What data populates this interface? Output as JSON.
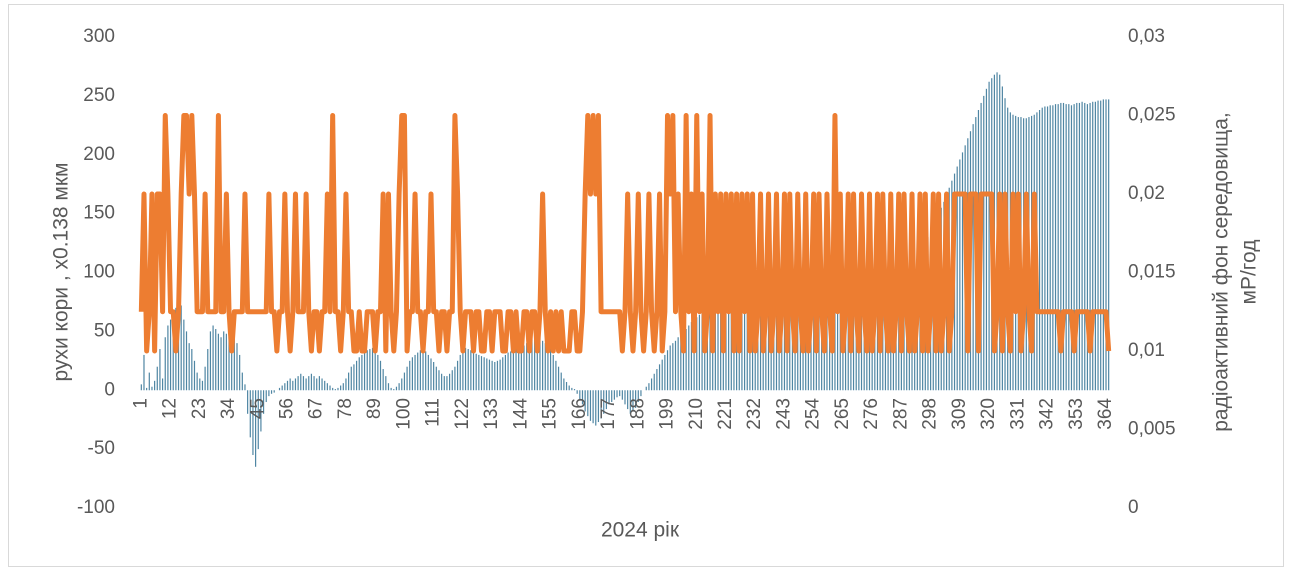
{
  "chart_data": {
    "type": "combo",
    "x_label": "2024 рік",
    "y_label": "рухи кори , х0.138 мкм",
    "y2_label": [
      "радіоактивний фон середовища,",
      "мР/год"
    ],
    "ylim": [
      -100,
      300
    ],
    "yticks": [
      300,
      250,
      200,
      150,
      100,
      50,
      0,
      -50,
      -100
    ],
    "y2lim": [
      0,
      0.03
    ],
    "y2ticks": [
      {
        "value": 0.03,
        "label": "0,03"
      },
      {
        "value": 0.025,
        "label": "0,025"
      },
      {
        "value": 0.02,
        "label": "0,02"
      },
      {
        "value": 0.015,
        "label": "0,015"
      },
      {
        "value": 0.01,
        "label": "0,01"
      },
      {
        "value": 0.005,
        "label": "0,005"
      },
      0
    ],
    "categories": [
      "1",
      null,
      null,
      null,
      null,
      null,
      null,
      null,
      null,
      null,
      null,
      "12",
      null,
      null,
      null,
      null,
      null,
      null,
      null,
      null,
      null,
      null,
      "23",
      null,
      null,
      null,
      null,
      null,
      null,
      null,
      null,
      null,
      null,
      "34",
      null,
      null,
      null,
      null,
      null,
      null,
      null,
      null,
      null,
      null,
      "45",
      null,
      null,
      null,
      null,
      null,
      null,
      null,
      null,
      null,
      null,
      "56",
      null,
      null,
      null,
      null,
      null,
      null,
      null,
      null,
      null,
      null,
      "67",
      null,
      null,
      null,
      null,
      null,
      null,
      null,
      null,
      null,
      null,
      "78",
      null,
      null,
      null,
      null,
      null,
      null,
      null,
      null,
      null,
      null,
      "89",
      null,
      null,
      null,
      null,
      null,
      null,
      null,
      null,
      null,
      null,
      "100",
      null,
      null,
      null,
      null,
      null,
      null,
      null,
      null,
      null,
      null,
      "111",
      null,
      null,
      null,
      null,
      null,
      null,
      null,
      null,
      null,
      null,
      "122",
      null,
      null,
      null,
      null,
      null,
      null,
      null,
      null,
      null,
      null,
      "133",
      null,
      null,
      null,
      null,
      null,
      null,
      null,
      null,
      null,
      null,
      "144",
      null,
      null,
      null,
      null,
      null,
      null,
      null,
      null,
      null,
      null,
      "155",
      null,
      null,
      null,
      null,
      null,
      null,
      null,
      null,
      null,
      null,
      "166",
      null,
      null,
      null,
      null,
      null,
      null,
      null,
      null,
      null,
      null,
      "177",
      null,
      null,
      null,
      null,
      null,
      null,
      null,
      null,
      null,
      null,
      "188",
      null,
      null,
      null,
      null,
      null,
      null,
      null,
      null,
      null,
      null,
      "199",
      null,
      null,
      null,
      null,
      null,
      null,
      null,
      null,
      null,
      null,
      "210",
      null,
      null,
      null,
      null,
      null,
      null,
      null,
      null,
      null,
      null,
      "221",
      null,
      null,
      null,
      null,
      null,
      null,
      null,
      null,
      null,
      null,
      "232",
      null,
      null,
      null,
      null,
      null,
      null,
      null,
      null,
      null,
      null,
      "243",
      null,
      null,
      null,
      null,
      null,
      null,
      null,
      null,
      null,
      null,
      "254",
      null,
      null,
      null,
      null,
      null,
      null,
      null,
      null,
      null,
      null,
      "265",
      null,
      null,
      null,
      null,
      null,
      null,
      null,
      null,
      null,
      null,
      "276",
      null,
      null,
      null,
      null,
      null,
      null,
      null,
      null,
      null,
      null,
      "287",
      null,
      null,
      null,
      null,
      null,
      null,
      null,
      null,
      null,
      null,
      "298",
      null,
      null,
      null,
      null,
      null,
      null,
      null,
      null,
      null,
      null,
      "309",
      null,
      null,
      null,
      null,
      null,
      null,
      null,
      null,
      null,
      null,
      "320",
      null,
      null,
      null,
      null,
      null,
      null,
      null,
      null,
      null,
      null,
      "331",
      null,
      null,
      null,
      null,
      null,
      null,
      null,
      null,
      null,
      null,
      "342",
      null,
      null,
      null,
      null,
      null,
      null,
      null,
      null,
      null,
      null,
      "353",
      null,
      null,
      null,
      null,
      null,
      null,
      null,
      null,
      null,
      null,
      "364",
      null
    ],
    "series": [
      {
        "type": "bar",
        "color": "#4f86a3",
        "values": [
          5,
          30,
          2,
          15,
          3,
          8,
          20,
          35,
          10,
          45,
          55,
          60,
          65,
          70,
          75,
          72,
          60,
          50,
          40,
          35,
          25,
          15,
          10,
          8,
          20,
          35,
          50,
          55,
          52,
          48,
          45,
          50,
          48,
          45,
          46,
          44,
          40,
          30,
          15,
          5,
          -20,
          -40,
          -55,
          -65,
          -50,
          -35,
          -20,
          -10,
          -5,
          -3,
          -2,
          0,
          2,
          4,
          6,
          8,
          10,
          8,
          10,
          12,
          14,
          12,
          10,
          12,
          14,
          12,
          10,
          12,
          10,
          8,
          6,
          4,
          2,
          1,
          2,
          4,
          6,
          10,
          15,
          20,
          22,
          25,
          28,
          30,
          32,
          34,
          35,
          36,
          35,
          30,
          25,
          18,
          12,
          6,
          2,
          1,
          3,
          6,
          10,
          15,
          20,
          25,
          28,
          30,
          32,
          34,
          35,
          33,
          30,
          27,
          24,
          20,
          17,
          14,
          12,
          12,
          14,
          17,
          20,
          25,
          30,
          34,
          36,
          35,
          34,
          32,
          31,
          30,
          29,
          28,
          27,
          26,
          25,
          24,
          25,
          26,
          28,
          30,
          32,
          33,
          34,
          35,
          36,
          37,
          38,
          40,
          42,
          43,
          44,
          45,
          44,
          42,
          40,
          38,
          35,
          30,
          25,
          20,
          15,
          10,
          7,
          4,
          2,
          1,
          -3,
          -8,
          -12,
          -18,
          -22,
          -26,
          -28,
          -30,
          -27,
          -24,
          -20,
          -16,
          -12,
          -10,
          -8,
          -6,
          -5,
          -8,
          -12,
          -16,
          -20,
          -18,
          -15,
          -10,
          -5,
          0,
          3,
          6,
          10,
          14,
          18,
          22,
          26,
          30,
          34,
          38,
          40,
          42,
          45,
          48,
          50,
          52,
          55,
          58,
          60,
          62,
          64,
          66,
          68,
          70,
          72,
          74,
          76,
          78,
          80,
          82,
          84,
          86,
          88,
          90,
          92,
          94,
          96,
          98,
          100,
          102,
          104,
          106,
          108,
          110,
          110,
          112,
          112,
          114,
          114,
          115,
          115,
          114,
          113,
          112,
          112,
          111,
          110,
          110,
          112,
          113,
          114,
          114,
          113,
          112,
          110,
          108,
          106,
          104,
          102,
          100,
          98,
          96,
          95,
          94,
          93,
          92,
          91,
          90,
          89,
          88,
          87,
          86,
          85,
          85,
          86,
          87,
          88,
          90,
          92,
          94,
          95,
          96,
          98,
          100,
          102,
          104,
          106,
          108,
          110,
          112,
          114,
          116,
          118,
          120,
          122,
          125,
          130,
          135,
          140,
          145,
          150,
          155,
          160,
          166,
          172,
          178,
          184,
          190,
          196,
          202,
          208,
          214,
          220,
          226,
          232,
          238,
          244,
          250,
          256,
          262,
          265,
          268,
          270,
          268,
          258,
          248,
          240,
          236,
          234,
          233,
          232,
          232,
          231,
          231,
          232,
          233,
          234,
          236,
          238,
          240,
          241,
          241,
          242,
          242,
          243,
          243,
          244,
          244,
          243,
          243,
          242,
          243,
          244,
          244,
          245,
          244,
          243,
          244,
          245,
          245,
          246,
          246,
          247,
          247,
          247
        ]
      },
      {
        "type": "line",
        "axis": "y2",
        "color": "#ed7d31",
        "values": [
          0.0125,
          0.02,
          0.01,
          0.0125,
          0.02,
          0.01,
          0.02,
          0.02,
          0.0125,
          0.025,
          0.02,
          0.0125,
          0.0125,
          0.01,
          0.0125,
          0.02,
          0.025,
          0.025,
          0.02,
          0.025,
          0.02,
          0.0125,
          0.0125,
          0.0125,
          0.02,
          0.0125,
          0.0125,
          0.0125,
          0.0125,
          0.025,
          0.0125,
          0.0125,
          0.02,
          0.0125,
          0.01,
          0.0125,
          0.0125,
          0.0125,
          0.0125,
          0.02,
          0.0125,
          0.0125,
          0.0125,
          0.0125,
          0.0125,
          0.0125,
          0.0125,
          0.0125,
          0.02,
          0.0125,
          0.0125,
          0.01,
          0.0125,
          0.0125,
          0.02,
          0.0125,
          0.01,
          0.0125,
          0.02,
          0.0125,
          0.0125,
          0.0125,
          0.02,
          0.0125,
          0.01,
          0.0125,
          0.0125,
          0.01,
          0.0125,
          0.0125,
          0.02,
          0.0125,
          0.025,
          0.0125,
          0.0125,
          0.01,
          0.0125,
          0.02,
          0.0125,
          0.0125,
          0.01,
          0.01,
          0.0125,
          0.01,
          0.01,
          0.0125,
          0.0125,
          0.0125,
          0.01,
          0.0125,
          0.0125,
          0.02,
          0.01,
          0.02,
          0.0125,
          0.01,
          0.0125,
          0.02,
          0.025,
          0.025,
          0.01,
          0.0125,
          0.0125,
          0.02,
          0.0125,
          0.0125,
          0.01,
          0.0125,
          0.0125,
          0.02,
          0.0125,
          0.0125,
          0.01,
          0.0125,
          0.0125,
          0.01,
          0.0125,
          0.0125,
          0.025,
          0.02,
          0.0125,
          0.01,
          0.0125,
          0.0125,
          0.0125,
          0.01,
          0.0125,
          0.0125,
          0.01,
          0.01,
          0.0125,
          0.0125,
          0.01,
          0.0125,
          0.0125,
          0.0125,
          0.01,
          0.01,
          0.0125,
          0.0125,
          0.01,
          0.0125,
          0.01,
          0.01,
          0.0125,
          0.0125,
          0.01,
          0.0125,
          0.0125,
          0.01,
          0.0125,
          0.02,
          0.0125,
          0.01,
          0.0125,
          0.01,
          0.0125,
          0.01,
          0.0125,
          0.01,
          0.01,
          0.01,
          0.0125,
          0.0125,
          0.01,
          0.01,
          0.0125,
          0.02,
          0.025,
          0.02,
          0.025,
          0.02,
          0.025,
          0.0125,
          0.0125,
          0.0125,
          0.0125,
          0.0125,
          0.0125,
          0.0125,
          0.0125,
          0.01,
          0.0125,
          0.02,
          0.0125,
          0.01,
          0.0125,
          0.02,
          0.0125,
          0.01,
          0.0125,
          0.02,
          0.0125,
          0.01,
          0.0125,
          0.02,
          0.01,
          0.0125,
          0.025,
          0.02,
          0.025,
          0.0125,
          0.02,
          0.0125,
          0.01,
          0.025,
          0.0125,
          0.02,
          0.01,
          0.025,
          0.0125,
          0.02,
          0.01,
          0.0125,
          0.025,
          0.01,
          0.02,
          0.0125,
          0.02,
          0.01,
          0.02,
          0.0125,
          0.02,
          0.01,
          0.02,
          0.01,
          0.02,
          0.0125,
          0.02,
          0.01,
          0.02,
          0.01,
          0.0125,
          0.02,
          0.01,
          0.0125,
          0.02,
          0.01,
          0.0125,
          0.02,
          0.01,
          0.0125,
          0.02,
          0.01,
          0.02,
          0.0125,
          0.01,
          0.02,
          0.0125,
          0.01,
          0.02,
          0.01,
          0.0125,
          0.02,
          0.01,
          0.02,
          0.0125,
          0.01,
          0.02,
          0.0125,
          0.01,
          0.025,
          0.0125,
          0.02,
          0.01,
          0.0125,
          0.02,
          0.01,
          0.02,
          0.0125,
          0.01,
          0.02,
          0.0125,
          0.01,
          0.02,
          0.01,
          0.0125,
          0.02,
          0.01,
          0.02,
          0.0125,
          0.01,
          0.02,
          0.01,
          0.0125,
          0.02,
          0.01,
          0.02,
          0.0125,
          0.01,
          0.02,
          0.01,
          0.0125,
          0.02,
          0.01,
          0.02,
          0.01,
          0.0125,
          0.02,
          0.01,
          0.02,
          0.01,
          0.0125,
          0.02,
          0.01,
          0.0125,
          0.02,
          0.02,
          0.02,
          0.02,
          0.02,
          0.01,
          0.02,
          0.02,
          0.02,
          0.01,
          0.02,
          0.02,
          0.02,
          0.02,
          0.02,
          0.01,
          0.0125,
          0.02,
          0.01,
          0.02,
          0.0125,
          0.01,
          0.02,
          0.0125,
          0.02,
          0.01,
          0.0125,
          0.02,
          0.0125,
          0.01,
          0.02,
          0.0125,
          0.0125,
          0.0125,
          0.0125,
          0.0125,
          0.0125,
          0.0125,
          0.0125,
          0.0125,
          0.01,
          0.0125,
          0.0125,
          0.0125,
          0.0125,
          0.01,
          0.0125,
          0.0125,
          0.0125,
          0.0125,
          0.0125,
          0.01,
          0.0125,
          0.0125,
          0.0125,
          0.0125,
          0.0125,
          0.0125,
          0.01
        ]
      }
    ]
  }
}
